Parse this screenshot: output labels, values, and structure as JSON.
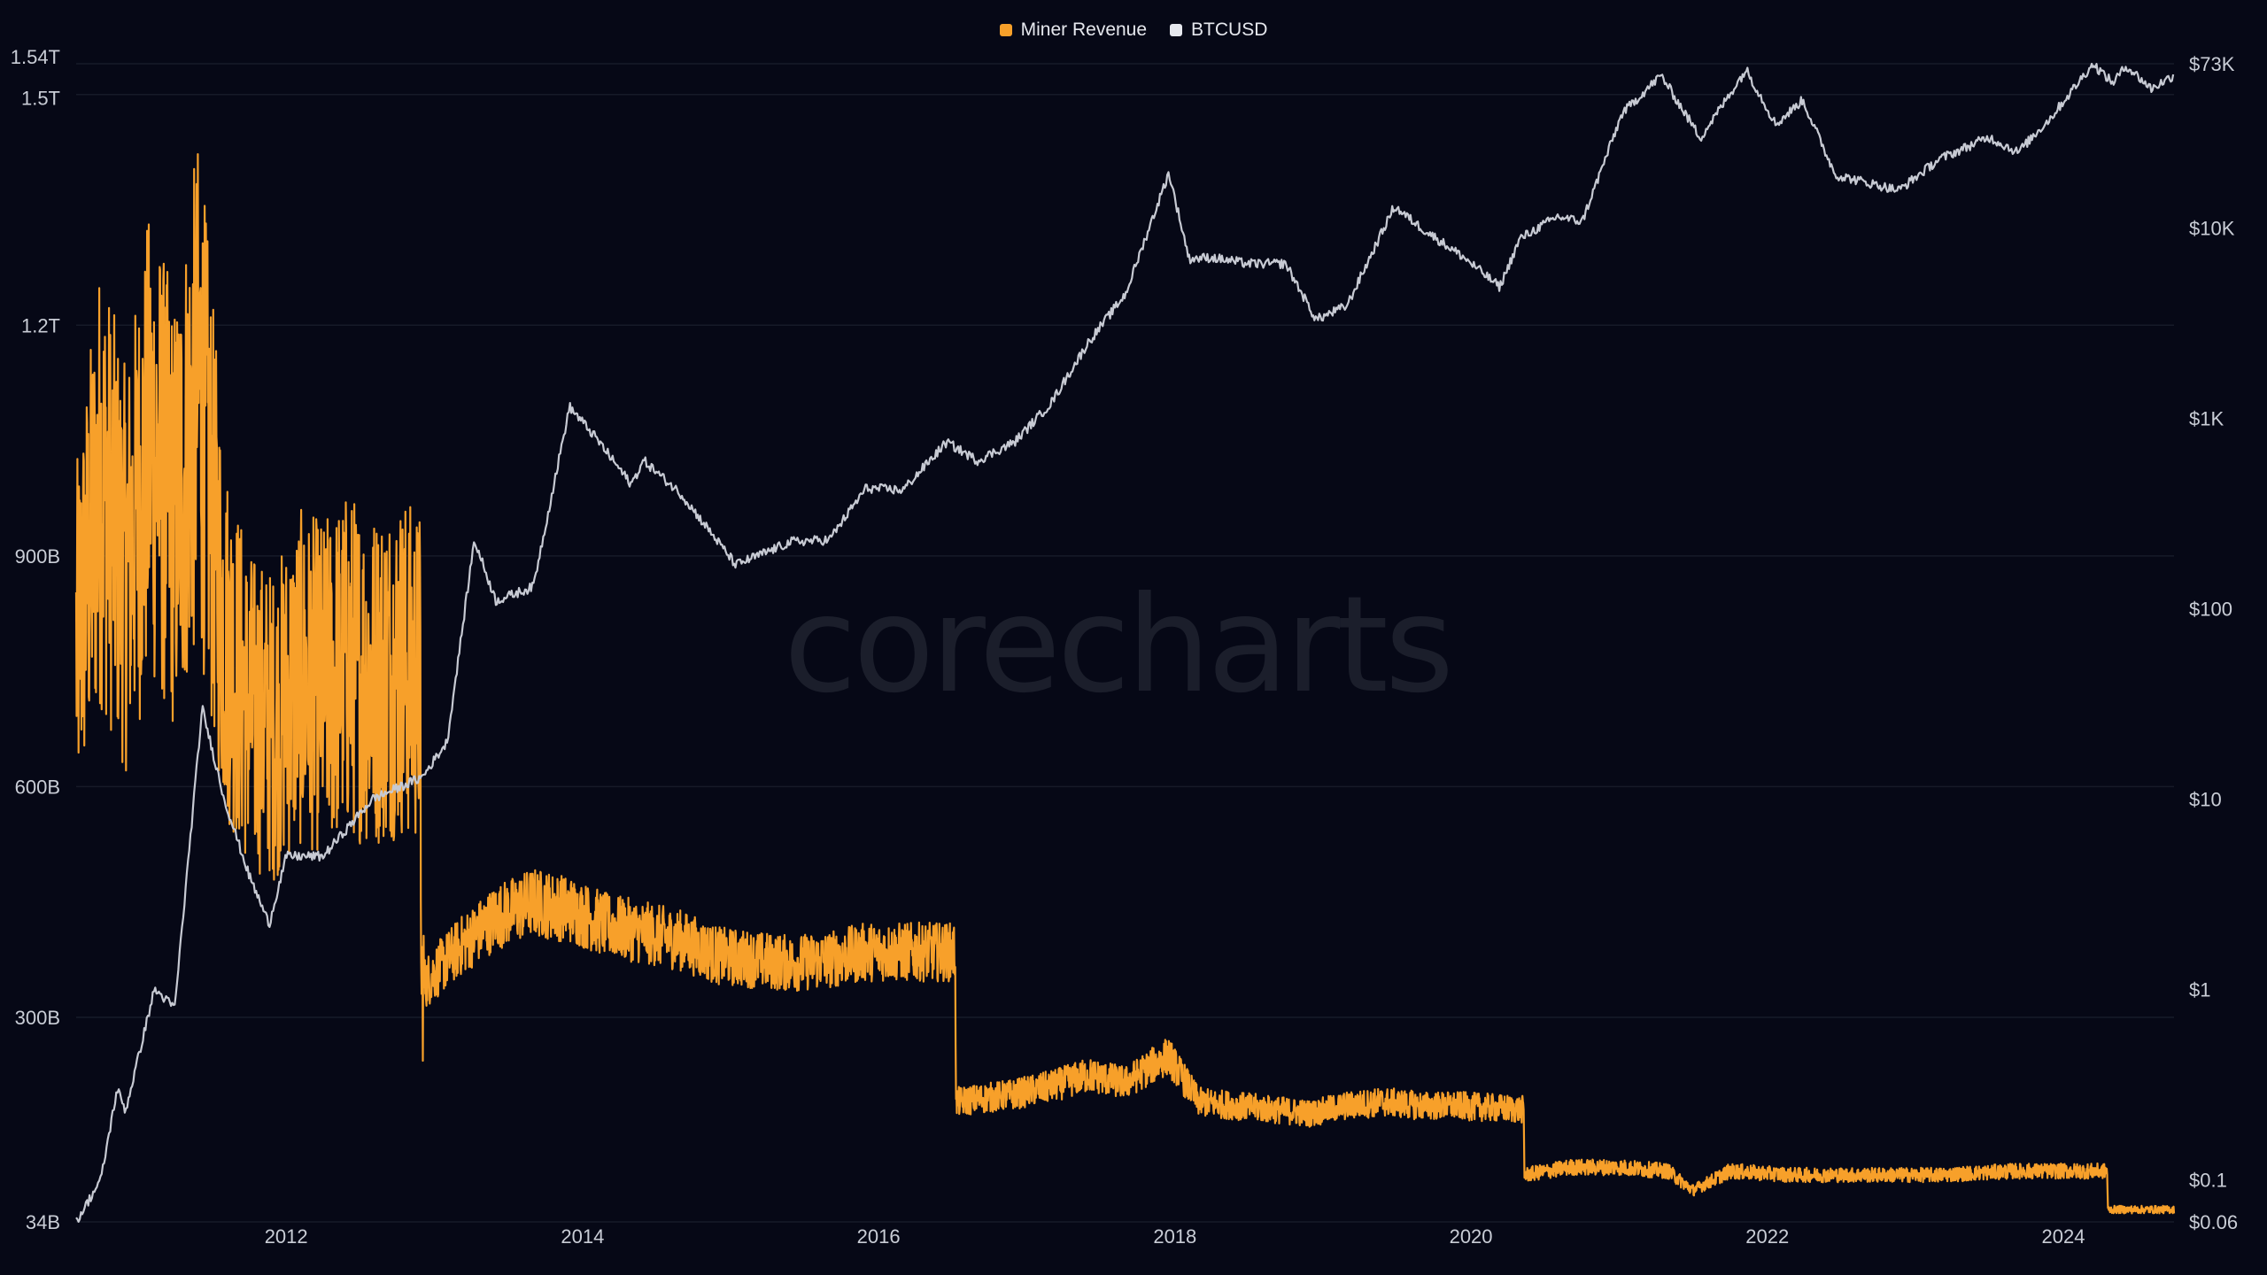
{
  "watermark": "corecharts",
  "legend": [
    {
      "name": "Miner Revenue",
      "color": "#f7a02a"
    },
    {
      "name": "BTCUSD",
      "color": "#e6e8ee"
    }
  ],
  "chart_data": {
    "type": "line",
    "grid": true,
    "legend_placement": "top-center",
    "x_range": [
      "2010-08-01",
      "2024-09-30"
    ],
    "x_ticks": [
      "2012",
      "2014",
      "2016",
      "2018",
      "2020",
      "2022",
      "2024"
    ],
    "left_axis": {
      "scale": "linear",
      "range": [
        34000000000,
        1540000000000
      ],
      "ticks": [
        {
          "value": 34000000000,
          "label": "34B"
        },
        {
          "value": 300000000000,
          "label": "300B"
        },
        {
          "value": 600000000000,
          "label": "600B"
        },
        {
          "value": 900000000000,
          "label": "900B"
        },
        {
          "value": 1200000000000,
          "label": "1.2T"
        },
        {
          "value": 1500000000000,
          "label": "1.5T"
        },
        {
          "value": 1540000000000,
          "label": "1.54T"
        }
      ]
    },
    "right_axis": {
      "scale": "log",
      "range": [
        0.06,
        73000
      ],
      "ticks": [
        {
          "value": 0.06,
          "label": "$0.06"
        },
        {
          "value": 0.1,
          "label": "$0.1"
        },
        {
          "value": 1,
          "label": "$1"
        },
        {
          "value": 10,
          "label": "$10"
        },
        {
          "value": 100,
          "label": "$100"
        },
        {
          "value": 1000,
          "label": "$1K"
        },
        {
          "value": 10000,
          "label": "$10K"
        },
        {
          "value": 73000,
          "label": "$73K"
        }
      ]
    },
    "series": [
      {
        "name": "Miner Revenue",
        "axis": "left",
        "color": "#f7a02a",
        "points": [
          [
            "2010-08-01",
            780000000000
          ],
          [
            "2010-10-01",
            1000000000000
          ],
          [
            "2010-12-01",
            880000000000
          ],
          [
            "2011-02-01",
            1050000000000
          ],
          [
            "2011-04-01",
            950000000000
          ],
          [
            "2011-06-01",
            1120000000000
          ],
          [
            "2011-08-01",
            800000000000
          ],
          [
            "2011-10-01",
            700000000000
          ],
          [
            "2011-12-01",
            680000000000
          ],
          [
            "2012-02-01",
            740000000000
          ],
          [
            "2012-04-01",
            730000000000
          ],
          [
            "2012-06-01",
            760000000000
          ],
          [
            "2012-08-01",
            740000000000
          ],
          [
            "2012-10-01",
            760000000000
          ],
          [
            "2012-11-27",
            740000000000
          ],
          [
            "2012-11-29",
            340000000000
          ],
          [
            "2013-03-01",
            390000000000
          ],
          [
            "2013-06-01",
            430000000000
          ],
          [
            "2013-09-01",
            450000000000
          ],
          [
            "2013-12-01",
            440000000000
          ],
          [
            "2014-03-01",
            420000000000
          ],
          [
            "2014-06-01",
            410000000000
          ],
          [
            "2014-09-01",
            400000000000
          ],
          [
            "2014-12-01",
            380000000000
          ],
          [
            "2015-03-01",
            375000000000
          ],
          [
            "2015-06-01",
            370000000000
          ],
          [
            "2015-09-01",
            375000000000
          ],
          [
            "2015-12-01",
            385000000000
          ],
          [
            "2016-03-01",
            385000000000
          ],
          [
            "2016-07-08",
            385000000000
          ],
          [
            "2016-07-10",
            190000000000
          ],
          [
            "2016-12-01",
            200000000000
          ],
          [
            "2017-03-01",
            210000000000
          ],
          [
            "2017-06-01",
            225000000000
          ],
          [
            "2017-09-01",
            215000000000
          ],
          [
            "2017-12-15",
            250000000000
          ],
          [
            "2018-03-01",
            190000000000
          ],
          [
            "2018-06-01",
            185000000000
          ],
          [
            "2018-09-01",
            180000000000
          ],
          [
            "2018-12-01",
            175000000000
          ],
          [
            "2019-03-01",
            185000000000
          ],
          [
            "2019-06-01",
            190000000000
          ],
          [
            "2019-09-01",
            185000000000
          ],
          [
            "2019-12-01",
            185000000000
          ],
          [
            "2020-05-10",
            180000000000
          ],
          [
            "2020-05-12",
            95000000000
          ],
          [
            "2020-09-01",
            105000000000
          ],
          [
            "2021-01-01",
            105000000000
          ],
          [
            "2021-05-01",
            100000000000
          ],
          [
            "2021-07-01",
            75000000000
          ],
          [
            "2021-10-01",
            100000000000
          ],
          [
            "2022-03-01",
            95000000000
          ],
          [
            "2022-09-01",
            95000000000
          ],
          [
            "2023-03-01",
            95000000000
          ],
          [
            "2023-09-01",
            100000000000
          ],
          [
            "2024-02-01",
            100000000000
          ],
          [
            "2024-04-18",
            100000000000
          ],
          [
            "2024-04-20",
            50000000000
          ],
          [
            "2024-09-30",
            50000000000
          ]
        ]
      },
      {
        "name": "BTCUSD",
        "axis": "right",
        "color": "#e6e8ee",
        "points": [
          [
            "2010-08-01",
            0.06
          ],
          [
            "2010-10-01",
            0.1
          ],
          [
            "2010-11-10",
            0.3
          ],
          [
            "2010-12-01",
            0.23
          ],
          [
            "2011-02-10",
            1.0
          ],
          [
            "2011-04-01",
            0.8
          ],
          [
            "2011-06-08",
            30
          ],
          [
            "2011-08-01",
            10
          ],
          [
            "2011-10-01",
            4
          ],
          [
            "2011-11-20",
            2.2
          ],
          [
            "2012-01-01",
            5
          ],
          [
            "2012-04-01",
            5
          ],
          [
            "2012-08-01",
            10
          ],
          [
            "2012-12-01",
            13
          ],
          [
            "2013-02-01",
            20
          ],
          [
            "2013-04-09",
            230
          ],
          [
            "2013-06-01",
            110
          ],
          [
            "2013-09-01",
            130
          ],
          [
            "2013-11-30",
            1150
          ],
          [
            "2014-02-01",
            800
          ],
          [
            "2014-05-01",
            450
          ],
          [
            "2014-06-01",
            600
          ],
          [
            "2014-09-01",
            400
          ],
          [
            "2015-01-14",
            170
          ],
          [
            "2015-06-01",
            225
          ],
          [
            "2015-09-01",
            230
          ],
          [
            "2015-12-01",
            430
          ],
          [
            "2016-03-01",
            420
          ],
          [
            "2016-06-17",
            750
          ],
          [
            "2016-09-01",
            600
          ],
          [
            "2016-12-01",
            750
          ],
          [
            "2017-03-01",
            1200
          ],
          [
            "2017-06-01",
            2500
          ],
          [
            "2017-09-01",
            4500
          ],
          [
            "2017-12-17",
            19500
          ],
          [
            "2018-02-05",
            6900
          ],
          [
            "2018-04-01",
            7000
          ],
          [
            "2018-07-01",
            6500
          ],
          [
            "2018-10-01",
            6500
          ],
          [
            "2018-12-15",
            3300
          ],
          [
            "2019-03-01",
            3900
          ],
          [
            "2019-06-26",
            13000
          ],
          [
            "2019-09-01",
            10000
          ],
          [
            "2019-12-15",
            7000
          ],
          [
            "2020-03-12",
            4900
          ],
          [
            "2020-05-01",
            8800
          ],
          [
            "2020-08-01",
            11500
          ],
          [
            "2020-10-01",
            10800
          ],
          [
            "2021-01-08",
            40000
          ],
          [
            "2021-04-14",
            63500
          ],
          [
            "2021-07-20",
            29800
          ],
          [
            "2021-11-10",
            68000
          ],
          [
            "2022-01-22",
            35000
          ],
          [
            "2022-03-29",
            47000
          ],
          [
            "2022-06-18",
            19000
          ],
          [
            "2022-11-21",
            15800
          ],
          [
            "2023-03-01",
            23000
          ],
          [
            "2023-07-01",
            30000
          ],
          [
            "2023-09-11",
            25000
          ],
          [
            "2023-12-01",
            38000
          ],
          [
            "2024-03-14",
            73000
          ],
          [
            "2024-05-01",
            58000
          ],
          [
            "2024-06-05",
            71000
          ],
          [
            "2024-08-05",
            54000
          ],
          [
            "2024-09-30",
            63500
          ]
        ]
      }
    ]
  }
}
